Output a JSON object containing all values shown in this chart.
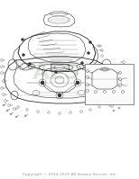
{
  "bg_color": "#ffffff",
  "diagram_title": "Copyright © 2014-2015 All Season Service, Inc.",
  "watermark_text": "ALS",
  "watermark_color": "#c8d8c8",
  "line_color": "#333333",
  "inset_box_color": "#888888",
  "title_font_size": 3.2,
  "fig_width": 1.54,
  "fig_height": 1.99,
  "dpi": 100,
  "hood_color": "#f5f5f5",
  "shadow_color": "#dddddd"
}
